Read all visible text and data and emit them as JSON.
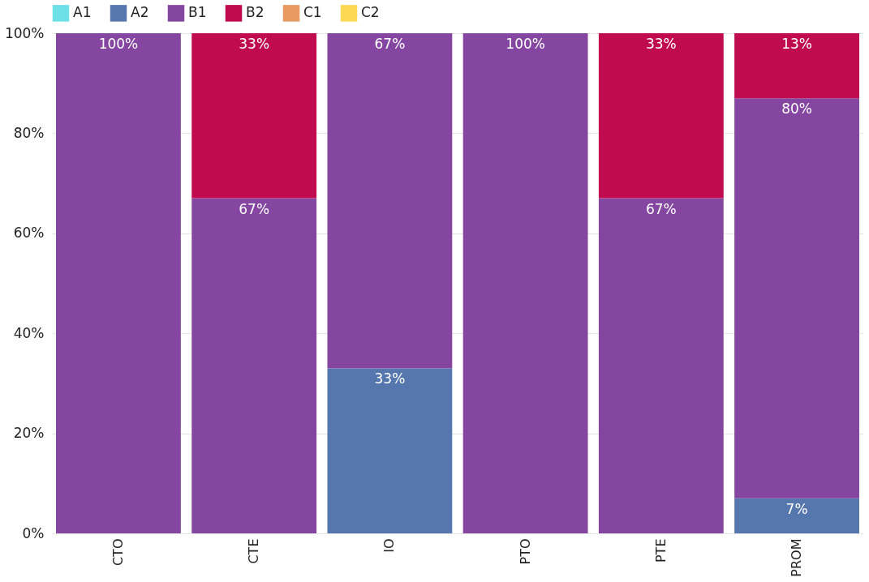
{
  "chart_data": {
    "type": "bar",
    "stacked": true,
    "categories": [
      "CTO",
      "CTE",
      "IO",
      "PTO",
      "PTE",
      "PROM"
    ],
    "series": [
      {
        "name": "A1",
        "color": "#6ddfe6",
        "values": [
          0,
          0,
          0,
          0,
          0,
          0
        ],
        "value_labels": [
          null,
          null,
          null,
          null,
          null,
          null
        ]
      },
      {
        "name": "A2",
        "color": "#5677ad",
        "values": [
          0,
          0,
          33,
          0,
          0,
          7
        ],
        "value_labels": [
          null,
          null,
          "33%",
          null,
          null,
          "7%"
        ]
      },
      {
        "name": "B1",
        "color": "#8446a0",
        "values": [
          100,
          67,
          67,
          100,
          67,
          80
        ],
        "value_labels": [
          "100%",
          "67%",
          "67%",
          "100%",
          "67%",
          "80%"
        ]
      },
      {
        "name": "B2",
        "color": "#c00b4e",
        "values": [
          0,
          33,
          0,
          0,
          33,
          13
        ],
        "value_labels": [
          null,
          "33%",
          null,
          null,
          "33%",
          "13%"
        ]
      },
      {
        "name": "C1",
        "color": "#e99a62",
        "values": [
          0,
          0,
          0,
          0,
          0,
          0
        ],
        "value_labels": [
          null,
          null,
          null,
          null,
          null,
          null
        ]
      },
      {
        "name": "C2",
        "color": "#fcd853",
        "values": [
          0,
          0,
          0,
          0,
          0,
          0
        ],
        "value_labels": [
          null,
          null,
          null,
          null,
          null,
          null
        ]
      }
    ],
    "ylim": [
      0,
      100
    ],
    "yticks": [
      {
        "value": 0,
        "label": "0%"
      },
      {
        "value": 20,
        "label": "20%"
      },
      {
        "value": 40,
        "label": "40%"
      },
      {
        "value": 60,
        "label": "60%"
      },
      {
        "value": 80,
        "label": "80%"
      },
      {
        "value": 100,
        "label": "100%"
      }
    ],
    "grid": "y",
    "legend": "top"
  }
}
